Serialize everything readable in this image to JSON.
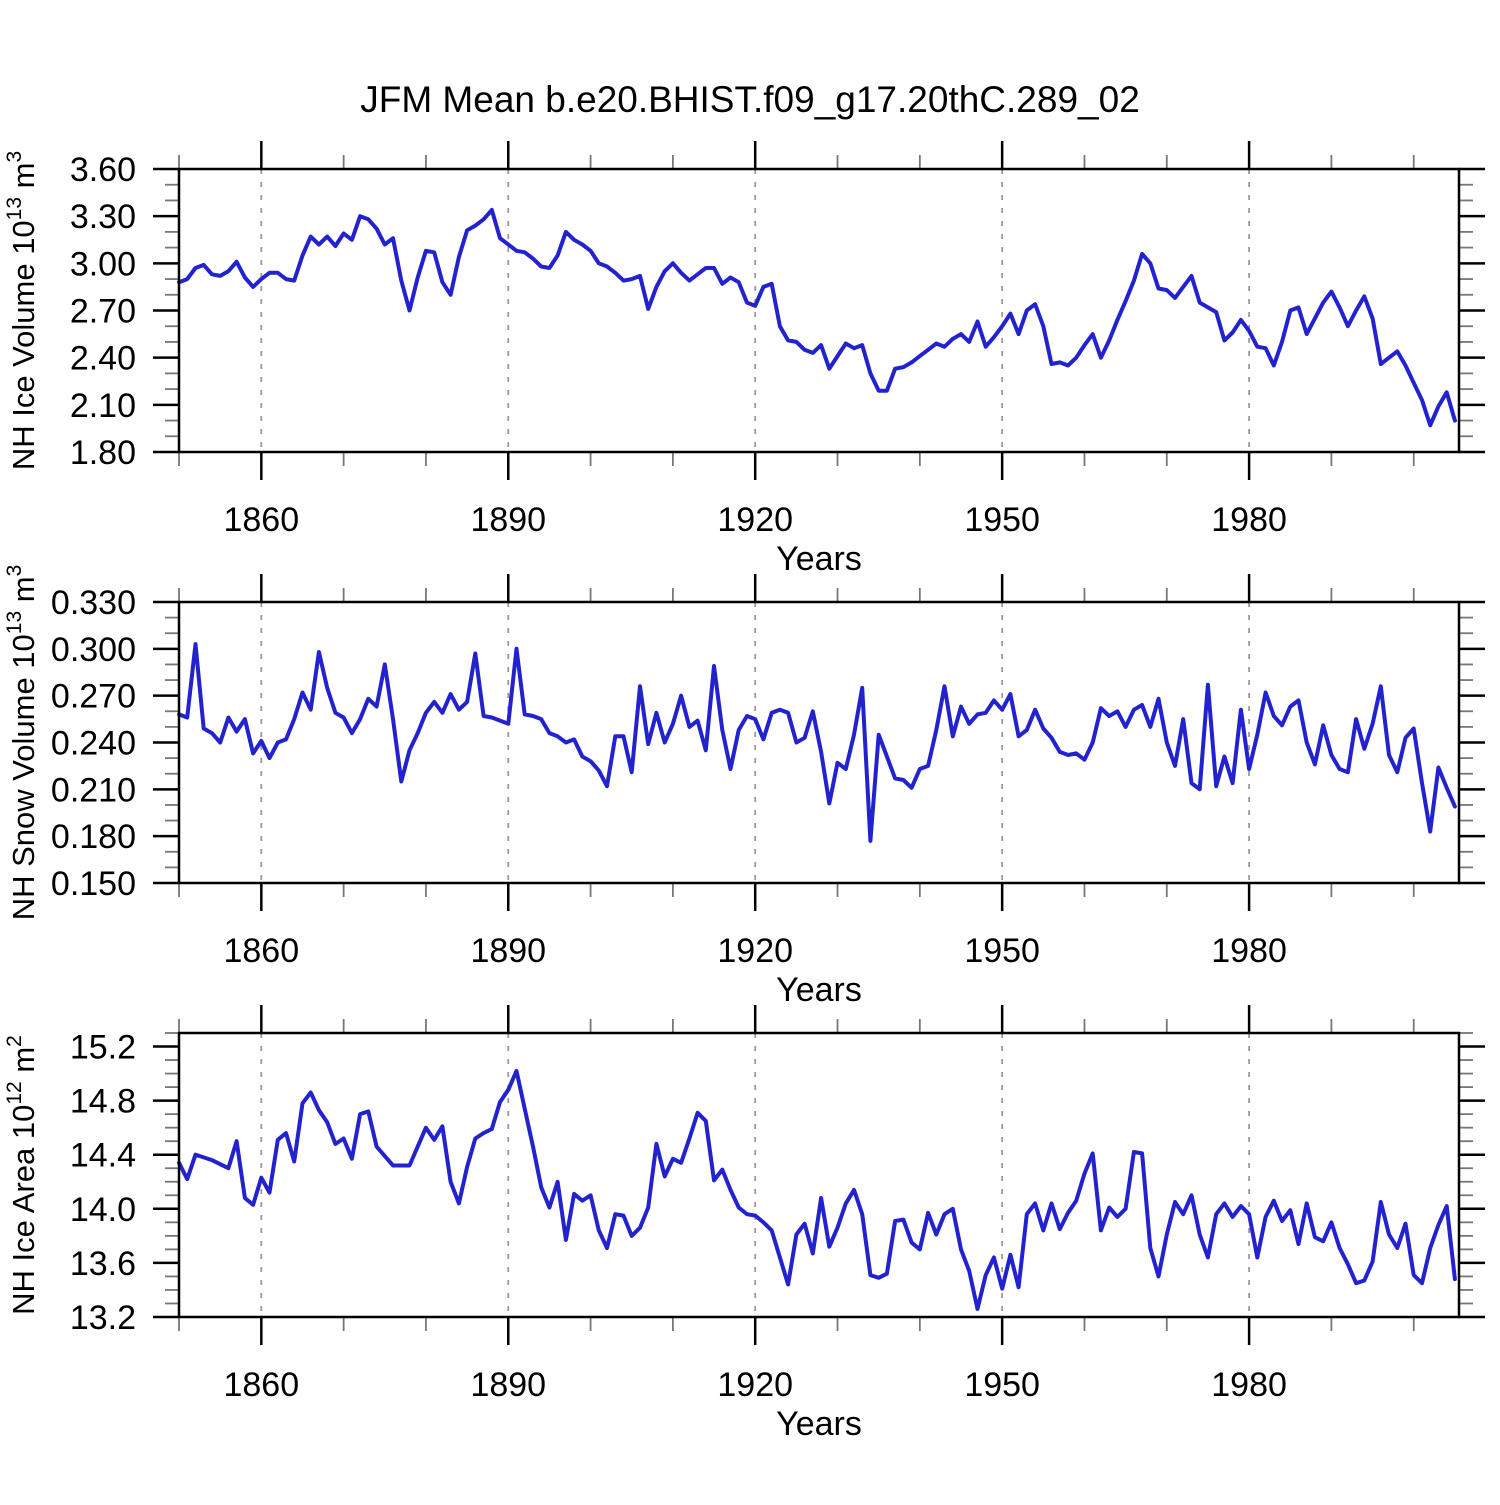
{
  "title": "JFM Mean b.e20.BHIST.f09_g17.20thC.289_02",
  "styles": {
    "line_color": "#2222CF",
    "grid_color": "#999999",
    "axis_color": "#000000",
    "minor_tick_color": "#777777",
    "background": "#FFFFFF"
  },
  "x_axis": {
    "label": "Years",
    "xlim": [
      1850,
      2005.5
    ],
    "major_ticks": [
      1860,
      1890,
      1920,
      1950,
      1980
    ],
    "major_tick_labels": [
      "1860",
      "1890",
      "1920",
      "1950",
      "1980"
    ],
    "minor_tick_step": 10,
    "gridlines": "dashed"
  },
  "chart_data": [
    {
      "type": "line",
      "ylabel": "NH Ice Volume 10^13 m^3",
      "ylabel_parts": [
        {
          "text": "NH Ice Volume 10"
        },
        {
          "text": "13",
          "sup": true
        },
        {
          "text": " m"
        },
        {
          "text": "3",
          "sup": true
        }
      ],
      "ylim": [
        1.8,
        3.6
      ],
      "ytick_values": [
        1.8,
        2.1,
        2.4,
        2.7,
        3.0,
        3.3,
        3.6
      ],
      "ytick_labels": [
        "1.80",
        "2.10",
        "2.40",
        "2.70",
        "3.00",
        "3.30",
        "3.60"
      ],
      "y_minor_step": 0.1,
      "xlabel": "Years",
      "x_start_year": 1850,
      "x_step_years": 1,
      "values": [
        2.88,
        2.9,
        2.97,
        2.99,
        2.93,
        2.92,
        2.95,
        3.01,
        2.91,
        2.85,
        2.9,
        2.94,
        2.94,
        2.9,
        2.89,
        3.05,
        3.17,
        3.12,
        3.17,
        3.11,
        3.19,
        3.15,
        3.3,
        3.28,
        3.22,
        3.12,
        3.16,
        2.89,
        2.7,
        2.91,
        3.08,
        3.07,
        2.88,
        2.8,
        3.04,
        3.21,
        3.24,
        3.28,
        3.34,
        3.16,
        3.12,
        3.08,
        3.07,
        3.03,
        2.98,
        2.97,
        3.05,
        3.2,
        3.15,
        3.12,
        3.08,
        3.0,
        2.98,
        2.94,
        2.89,
        2.9,
        2.92,
        2.71,
        2.85,
        2.95,
        3.0,
        2.94,
        2.89,
        2.93,
        2.97,
        2.97,
        2.87,
        2.91,
        2.88,
        2.75,
        2.73,
        2.85,
        2.87,
        2.6,
        2.51,
        2.5,
        2.45,
        2.43,
        2.48,
        2.33,
        2.41,
        2.49,
        2.46,
        2.48,
        2.3,
        2.19,
        2.19,
        2.33,
        2.34,
        2.37,
        2.41,
        2.45,
        2.49,
        2.47,
        2.52,
        2.55,
        2.5,
        2.63,
        2.47,
        2.53,
        2.6,
        2.68,
        2.55,
        2.7,
        2.74,
        2.6,
        2.36,
        2.37,
        2.35,
        2.4,
        2.48,
        2.55,
        2.4,
        2.51,
        2.64,
        2.76,
        2.89,
        3.06,
        3.0,
        2.84,
        2.83,
        2.78,
        2.85,
        2.92,
        2.75,
        2.72,
        2.69,
        2.51,
        2.56,
        2.64,
        2.57,
        2.47,
        2.46,
        2.35,
        2.5,
        2.7,
        2.72,
        2.55,
        2.65,
        2.75,
        2.82,
        2.72,
        2.6,
        2.7,
        2.79,
        2.65,
        2.36,
        2.4,
        2.44,
        2.35,
        2.24,
        2.13,
        1.97,
        2.09,
        2.18,
        2.0
      ]
    },
    {
      "type": "line",
      "ylabel": "NH Snow Volume 10^13 m^3",
      "ylabel_parts": [
        {
          "text": "NH Snow Volume 10"
        },
        {
          "text": "13",
          "sup": true
        },
        {
          "text": " m"
        },
        {
          "text": "3",
          "sup": true
        }
      ],
      "ylim": [
        0.15,
        0.33
      ],
      "ytick_values": [
        0.15,
        0.18,
        0.21,
        0.24,
        0.27,
        0.3,
        0.33
      ],
      "ytick_labels": [
        "0.150",
        "0.180",
        "0.210",
        "0.240",
        "0.270",
        "0.300",
        "0.330"
      ],
      "y_minor_step": 0.01,
      "xlabel": "Years",
      "x_start_year": 1850,
      "x_step_years": 1,
      "values": [
        0.258,
        0.256,
        0.303,
        0.249,
        0.246,
        0.24,
        0.256,
        0.247,
        0.255,
        0.233,
        0.241,
        0.23,
        0.24,
        0.242,
        0.255,
        0.272,
        0.261,
        0.298,
        0.275,
        0.259,
        0.256,
        0.246,
        0.255,
        0.268,
        0.263,
        0.29,
        0.255,
        0.215,
        0.235,
        0.246,
        0.259,
        0.266,
        0.259,
        0.271,
        0.261,
        0.266,
        0.297,
        0.257,
        0.256,
        0.254,
        0.252,
        0.3,
        0.258,
        0.257,
        0.255,
        0.246,
        0.244,
        0.24,
        0.242,
        0.231,
        0.228,
        0.222,
        0.212,
        0.244,
        0.244,
        0.221,
        0.276,
        0.239,
        0.259,
        0.24,
        0.252,
        0.27,
        0.25,
        0.254,
        0.235,
        0.289,
        0.248,
        0.223,
        0.248,
        0.257,
        0.255,
        0.242,
        0.259,
        0.261,
        0.259,
        0.24,
        0.243,
        0.26,
        0.234,
        0.201,
        0.227,
        0.223,
        0.245,
        0.275,
        0.177,
        0.245,
        0.231,
        0.217,
        0.216,
        0.211,
        0.223,
        0.225,
        0.248,
        0.276,
        0.244,
        0.263,
        0.252,
        0.258,
        0.259,
        0.267,
        0.261,
        0.271,
        0.244,
        0.248,
        0.261,
        0.249,
        0.243,
        0.234,
        0.232,
        0.233,
        0.229,
        0.24,
        0.262,
        0.257,
        0.26,
        0.25,
        0.261,
        0.264,
        0.25,
        0.268,
        0.24,
        0.225,
        0.255,
        0.214,
        0.21,
        0.277,
        0.212,
        0.231,
        0.214,
        0.261,
        0.223,
        0.245,
        0.272,
        0.257,
        0.251,
        0.263,
        0.267,
        0.24,
        0.226,
        0.251,
        0.232,
        0.223,
        0.221,
        0.255,
        0.236,
        0.252,
        0.276,
        0.232,
        0.221,
        0.243,
        0.249,
        0.214,
        0.183,
        0.224,
        0.211,
        0.199
      ]
    },
    {
      "type": "line",
      "ylabel": "NH Ice Area 10^12 m^2",
      "ylabel_parts": [
        {
          "text": "NH Ice Area 10"
        },
        {
          "text": "12",
          "sup": true
        },
        {
          "text": " m"
        },
        {
          "text": "2",
          "sup": true
        }
      ],
      "ylim": [
        13.2,
        15.3
      ],
      "ytick_values": [
        13.2,
        13.6,
        14.0,
        14.4,
        14.8,
        15.2
      ],
      "ytick_labels": [
        "13.2",
        "13.6",
        "14.0",
        "14.4",
        "14.8",
        "15.2"
      ],
      "y_minor_step": 0.1,
      "xlabel": "Years",
      "x_start_year": 1850,
      "x_step_years": 1,
      "values": [
        14.34,
        14.22,
        14.4,
        14.38,
        14.36,
        14.33,
        14.3,
        14.5,
        14.08,
        14.03,
        14.23,
        14.12,
        14.51,
        14.56,
        14.35,
        14.78,
        14.86,
        14.73,
        14.64,
        14.48,
        14.52,
        14.37,
        14.7,
        14.72,
        14.46,
        14.39,
        14.32,
        14.32,
        14.32,
        14.46,
        14.6,
        14.51,
        14.61,
        14.2,
        14.04,
        14.31,
        14.52,
        14.56,
        14.59,
        14.79,
        14.88,
        15.02,
        14.74,
        14.46,
        14.16,
        14.01,
        14.2,
        13.77,
        14.11,
        14.06,
        14.1,
        13.84,
        13.71,
        13.96,
        13.95,
        13.8,
        13.86,
        14.01,
        14.48,
        14.24,
        14.37,
        14.34,
        14.52,
        14.71,
        14.65,
        14.21,
        14.29,
        14.14,
        14.01,
        13.96,
        13.95,
        13.9,
        13.84,
        13.64,
        13.44,
        13.81,
        13.89,
        13.67,
        14.08,
        13.72,
        13.86,
        14.04,
        14.14,
        13.96,
        13.51,
        13.49,
        13.52,
        13.91,
        13.92,
        13.75,
        13.7,
        13.97,
        13.81,
        13.96,
        14.0,
        13.7,
        13.54,
        13.26,
        13.51,
        13.64,
        13.41,
        13.66,
        13.42,
        13.96,
        14.04,
        13.84,
        14.04,
        13.85,
        13.97,
        14.06,
        14.26,
        14.41,
        13.84,
        14.01,
        13.94,
        14.0,
        14.42,
        14.41,
        13.71,
        13.5,
        13.81,
        14.05,
        13.96,
        14.1,
        13.81,
        13.64,
        13.96,
        14.04,
        13.94,
        14.02,
        13.96,
        13.64,
        13.94,
        14.06,
        13.91,
        13.99,
        13.74,
        14.04,
        13.79,
        13.76,
        13.9,
        13.71,
        13.59,
        13.45,
        13.47,
        13.61,
        14.05,
        13.81,
        13.71,
        13.89,
        13.51,
        13.45,
        13.71,
        13.88,
        14.02,
        13.48
      ]
    }
  ]
}
